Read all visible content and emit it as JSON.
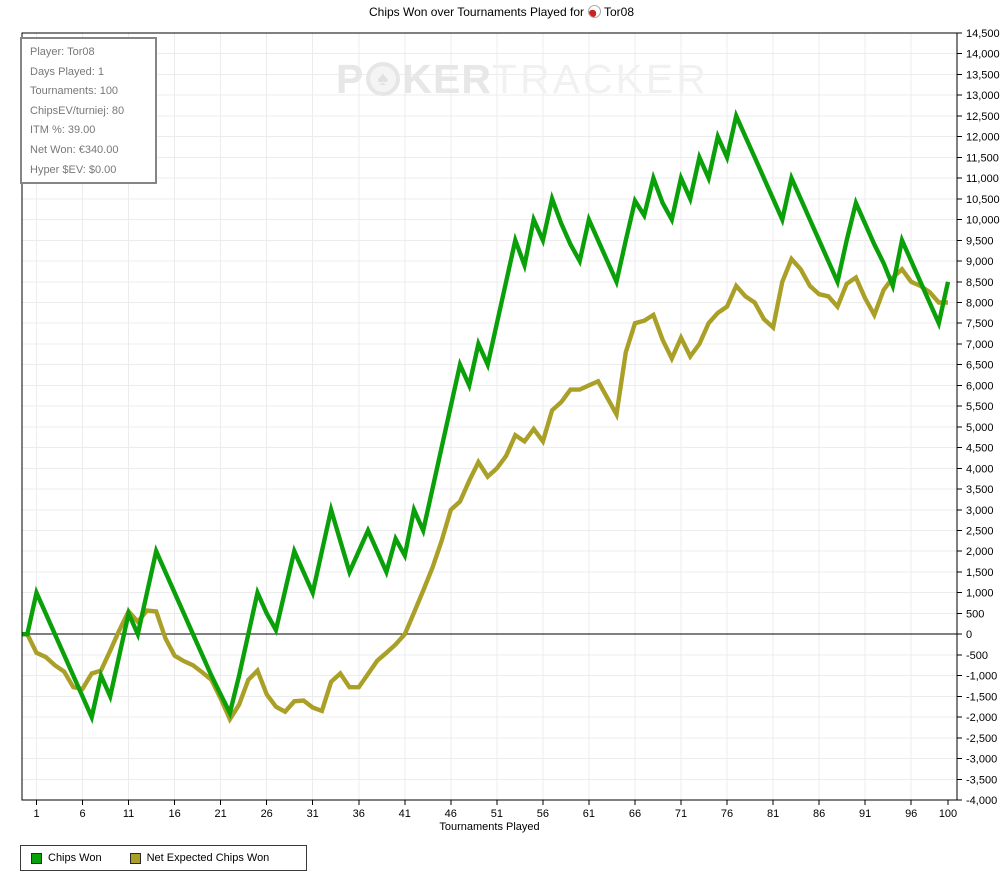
{
  "title": {
    "prefix": "Chips Won over Tournaments Played for",
    "player": "Tor08"
  },
  "info_box": {
    "lines": [
      "Player: Tor08",
      "Days Played: 1",
      "Tournaments: 100",
      "ChipsEV/turniej: 80",
      "ITM %: 39.00",
      "Net Won: €340.00",
      "Hyper $EV: $0.00"
    ]
  },
  "watermark": {
    "part1": "P",
    "part2": "KER",
    "part3": "TRACKER",
    "chip_glyph": "♠"
  },
  "axes": {
    "x_label": "Tournaments Played"
  },
  "legend": {
    "items": [
      {
        "label": "Chips Won",
        "color": "#0aa00a"
      },
      {
        "label": "Net Expected Chips Won",
        "color": "#aaa028"
      }
    ]
  },
  "chart_data": {
    "type": "line",
    "title": "Chips Won over Tournaments Played for Tor08",
    "xlabel": "Tournaments Played",
    "ylabel": "",
    "grid": true,
    "legend_position": "bottom-left",
    "xlim": [
      0,
      100
    ],
    "ylim": [
      -4000,
      14500
    ],
    "y_step": 500,
    "x_tick_values": [
      1,
      6,
      11,
      16,
      21,
      26,
      31,
      36,
      41,
      46,
      51,
      56,
      61,
      66,
      71,
      76,
      81,
      86,
      91,
      96,
      100
    ],
    "x_unit": "tournament_number (values indexed 0..100)",
    "series": [
      {
        "name": "Chips Won",
        "color": "#0aa00a",
        "values": [
          0,
          1000,
          500,
          0,
          -500,
          -1000,
          -1500,
          -2000,
          -1000,
          -1500,
          -500,
          500,
          0,
          1000,
          2000,
          1500,
          1000,
          500,
          0,
          -500,
          -1000,
          -1450,
          -1900,
          -1000,
          0,
          1000,
          500,
          100,
          1050,
          2000,
          1500,
          1000,
          2000,
          3000,
          2250,
          1500,
          2000,
          2500,
          2000,
          1500,
          2300,
          1900,
          3000,
          2500,
          3500,
          4500,
          5500,
          6500,
          6000,
          7000,
          6500,
          7500,
          8500,
          9500,
          8900,
          10000,
          9500,
          10500,
          9900,
          9400,
          9000,
          10000,
          9500,
          9000,
          8500,
          9500,
          10450,
          10100,
          11000,
          10400,
          10000,
          11000,
          10500,
          11500,
          11000,
          12000,
          11500,
          12500,
          12000,
          11500,
          11000,
          10500,
          10000,
          11000,
          10500,
          10000,
          9500,
          9000,
          8500,
          9500,
          10400,
          9900,
          9400,
          8950,
          8400,
          9500,
          9000,
          8500,
          8000,
          7500,
          8500
        ]
      },
      {
        "name": "Net Expected Chips Won",
        "color": "#aaa028",
        "values": [
          0,
          -450,
          -550,
          -750,
          -900,
          -1280,
          -1320,
          -950,
          -880,
          -400,
          100,
          550,
          300,
          570,
          550,
          -100,
          -520,
          -650,
          -750,
          -920,
          -1100,
          -1550,
          -2050,
          -1700,
          -1100,
          -880,
          -1450,
          -1750,
          -1870,
          -1620,
          -1600,
          -1770,
          -1850,
          -1150,
          -950,
          -1280,
          -1280,
          -960,
          -640,
          -450,
          -250,
          0,
          520,
          1050,
          1600,
          2250,
          3000,
          3200,
          3700,
          4150,
          3800,
          4000,
          4300,
          4800,
          4650,
          4950,
          4650,
          5400,
          5600,
          5900,
          5900,
          6000,
          6100,
          5700,
          5300,
          6800,
          7500,
          7560,
          7700,
          7100,
          6650,
          7150,
          6700,
          7000,
          7500,
          7750,
          7900,
          8400,
          8150,
          8000,
          7600,
          7400,
          8500,
          9050,
          8800,
          8400,
          8200,
          8150,
          7900,
          8450,
          8600,
          8100,
          7700,
          8300,
          8600,
          8800,
          8500,
          8400,
          8250,
          8000,
          8000
        ]
      }
    ]
  }
}
